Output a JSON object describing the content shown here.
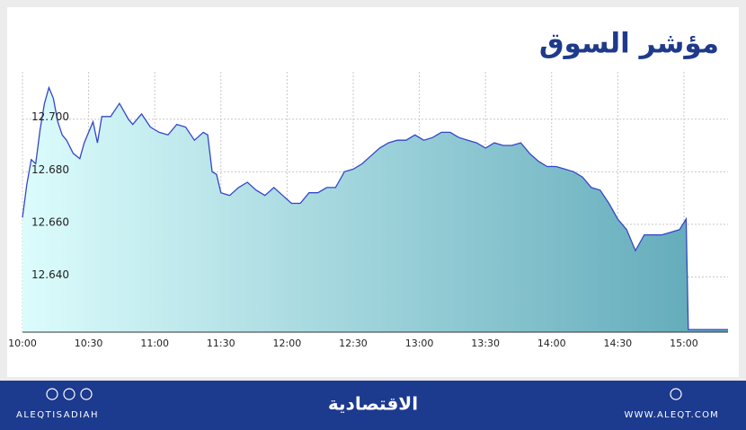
{
  "chart_data": {
    "type": "area",
    "title": "مؤشر السوق",
    "x": [
      "10:00",
      "10:02",
      "10:04",
      "10:06",
      "10:08",
      "10:10",
      "10:12",
      "10:14",
      "10:16",
      "10:18",
      "10:20",
      "10:23",
      "10:26",
      "10:28",
      "10:30",
      "10:32",
      "10:34",
      "10:36",
      "10:40",
      "10:44",
      "10:48",
      "10:50",
      "10:54",
      "10:58",
      "11:02",
      "11:06",
      "11:10",
      "11:14",
      "11:18",
      "11:22",
      "11:24",
      "11:26",
      "11:28",
      "11:30",
      "11:34",
      "11:38",
      "11:42",
      "11:46",
      "11:50",
      "11:54",
      "11:58",
      "12:02",
      "12:06",
      "12:10",
      "12:14",
      "12:18",
      "12:22",
      "12:26",
      "12:30",
      "12:34",
      "12:38",
      "12:42",
      "12:46",
      "12:50",
      "12:54",
      "12:58",
      "13:02",
      "13:06",
      "13:10",
      "13:14",
      "13:18",
      "13:22",
      "13:26",
      "13:30",
      "13:34",
      "13:38",
      "13:42",
      "13:46",
      "13:50",
      "13:54",
      "13:58",
      "14:02",
      "14:06",
      "14:10",
      "14:14",
      "14:18",
      "14:22",
      "14:26",
      "14:30",
      "14:34",
      "14:38",
      "14:42",
      "14:46",
      "14:50",
      "14:54",
      "14:58",
      "15:01",
      "15:02",
      "15:20"
    ],
    "values": [
      12.6626,
      12.6753,
      12.6846,
      12.683,
      12.696,
      12.706,
      12.712,
      12.708,
      12.699,
      12.694,
      12.692,
      12.687,
      12.685,
      12.691,
      12.695,
      12.699,
      12.691,
      12.701,
      12.701,
      12.706,
      12.7,
      12.698,
      12.702,
      12.697,
      12.695,
      12.694,
      12.698,
      12.697,
      12.692,
      12.695,
      12.694,
      12.68,
      12.679,
      12.672,
      12.671,
      12.674,
      12.676,
      12.673,
      12.671,
      12.674,
      12.671,
      12.668,
      12.668,
      12.672,
      12.672,
      12.674,
      12.674,
      12.68,
      12.681,
      12.683,
      12.686,
      12.689,
      12.691,
      12.692,
      12.692,
      12.694,
      12.692,
      12.693,
      12.695,
      12.695,
      12.693,
      12.692,
      12.691,
      12.689,
      12.691,
      12.69,
      12.69,
      12.691,
      12.687,
      12.684,
      12.682,
      12.682,
      12.681,
      12.68,
      12.678,
      12.674,
      12.673,
      12.668,
      12.662,
      12.658,
      12.65,
      12.656,
      12.656,
      12.656,
      12.657,
      12.658,
      12.662,
      12.62,
      12.62
    ],
    "color": "#3346c8",
    "area_colors": [
      "#dcfcfc",
      "#5ea8b8"
    ],
    "xlim": [
      "10:00",
      "15:20"
    ],
    "xticks": [
      "10:00",
      "10:30",
      "11:00",
      "11:30",
      "12:00",
      "12:30",
      "13:00",
      "13:30",
      "14:00",
      "14:30",
      "15:00"
    ],
    "ylim": [
      12.619,
      12.718
    ],
    "yticks": [
      {
        "value": 12.64,
        "label": "12.640"
      },
      {
        "value": 12.66,
        "label": "12.660"
      },
      {
        "value": 12.68,
        "label": "12.680"
      },
      {
        "value": 12.7,
        "label": "12.700"
      }
    ],
    "grid": true
  },
  "footer": {
    "social_handle": "ALEQTISADIAH",
    "brand": "الاقتصادية",
    "website": "WWW.ALEQT.COM"
  }
}
